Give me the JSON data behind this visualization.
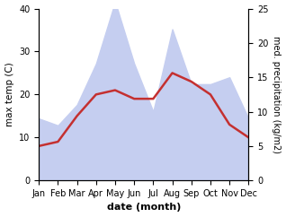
{
  "months": [
    "Jan",
    "Feb",
    "Mar",
    "Apr",
    "May",
    "Jun",
    "Jul",
    "Aug",
    "Sep",
    "Oct",
    "Nov",
    "Dec"
  ],
  "month_positions": [
    1,
    2,
    3,
    4,
    5,
    6,
    7,
    8,
    9,
    10,
    11,
    12
  ],
  "max_temp": [
    8,
    9,
    15,
    20,
    21,
    19,
    19,
    25,
    23,
    20,
    13,
    10
  ],
  "precipitation": [
    9,
    8,
    11,
    17,
    26,
    17,
    10,
    22,
    14,
    14,
    15,
    9
  ],
  "temp_color": "#c43030",
  "precip_fill_color": "#c5cef0",
  "precip_line_color": "#c5cef0",
  "temp_ylim": [
    0,
    40
  ],
  "precip_ylim": [
    0,
    25
  ],
  "ylabel_left": "max temp (C)",
  "ylabel_right": "med. precipitation (kg/m2)",
  "xlabel": "date (month)",
  "left_yticks": [
    0,
    10,
    20,
    30,
    40
  ],
  "right_yticks": [
    0,
    5,
    10,
    15,
    20,
    25
  ],
  "background_color": "#ffffff",
  "label_fontsize": 7.5,
  "tick_fontsize": 7,
  "xlabel_fontsize": 8,
  "linewidth": 1.8
}
